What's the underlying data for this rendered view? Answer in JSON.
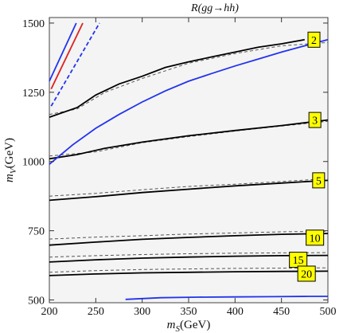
{
  "chart_data": {
    "type": "line",
    "title": "R(gg→hh)",
    "xlabel": "m_S(GeV)",
    "ylabel": "m_V(GeV)",
    "xlabel_parts": {
      "main": "m",
      "sub": "S",
      "unit": "(GeV)"
    },
    "ylabel_parts": {
      "main": "m",
      "sub": "V",
      "unit": "(GeV)"
    },
    "xlim": [
      200,
      500
    ],
    "ylim": [
      490,
      1520
    ],
    "xticks": [
      200,
      250,
      300,
      350,
      400,
      450,
      500
    ],
    "yticks": [
      500,
      750,
      1000,
      1250,
      1500
    ],
    "grid": false,
    "contours": [
      {
        "label": "2",
        "solid": [
          [
            200,
            1160
          ],
          [
            230,
            1195
          ],
          [
            250,
            1240
          ],
          [
            275,
            1280
          ],
          [
            300,
            1308
          ],
          [
            325,
            1340
          ],
          [
            350,
            1360
          ],
          [
            375,
            1378
          ],
          [
            400,
            1395
          ],
          [
            425,
            1413
          ],
          [
            450,
            1425
          ],
          [
            475,
            1440
          ]
        ],
        "dashed": [
          [
            200,
            1170
          ],
          [
            230,
            1190
          ],
          [
            260,
            1250
          ],
          [
            300,
            1300
          ],
          [
            350,
            1355
          ],
          [
            400,
            1390
          ],
          [
            450,
            1418
          ],
          [
            500,
            1430
          ]
        ],
        "tag_at": [
          485,
          1440
        ]
      },
      {
        "label": "3",
        "solid": [
          [
            200,
            1010
          ],
          [
            230,
            1025
          ],
          [
            260,
            1048
          ],
          [
            300,
            1070
          ],
          [
            350,
            1093
          ],
          [
            400,
            1112
          ],
          [
            450,
            1130
          ],
          [
            500,
            1150
          ]
        ],
        "dashed": [
          [
            200,
            1020
          ],
          [
            250,
            1035
          ],
          [
            300,
            1068
          ],
          [
            350,
            1090
          ],
          [
            400,
            1110
          ],
          [
            450,
            1128
          ],
          [
            500,
            1145
          ]
        ],
        "tag_at": [
          486,
          1150
        ]
      },
      {
        "label": "5",
        "solid": [
          [
            200,
            860
          ],
          [
            250,
            873
          ],
          [
            300,
            888
          ],
          [
            350,
            900
          ],
          [
            400,
            912
          ],
          [
            450,
            922
          ],
          [
            500,
            932
          ]
        ],
        "dashed": [
          [
            200,
            875
          ],
          [
            250,
            885
          ],
          [
            300,
            898
          ],
          [
            350,
            910
          ],
          [
            400,
            918
          ],
          [
            450,
            928
          ],
          [
            500,
            938
          ]
        ],
        "tag_at": [
          490,
          932
        ]
      },
      {
        "label": "10",
        "solid": [
          [
            200,
            698
          ],
          [
            250,
            709
          ],
          [
            300,
            719
          ],
          [
            350,
            726
          ],
          [
            400,
            732
          ],
          [
            450,
            737
          ],
          [
            500,
            740
          ]
        ],
        "dashed": [
          [
            200,
            720
          ],
          [
            250,
            727
          ],
          [
            300,
            732
          ],
          [
            350,
            738
          ],
          [
            400,
            742
          ],
          [
            450,
            746
          ],
          [
            500,
            748
          ]
        ],
        "tag_at": [
          486,
          725
        ]
      },
      {
        "label": "15",
        "solid": [
          [
            200,
            637
          ],
          [
            250,
            645
          ],
          [
            300,
            651
          ],
          [
            350,
            655
          ],
          [
            400,
            658
          ],
          [
            450,
            660
          ],
          [
            500,
            661
          ]
        ],
        "dashed": [
          [
            200,
            655
          ],
          [
            250,
            660
          ],
          [
            300,
            664
          ],
          [
            350,
            667
          ],
          [
            400,
            669
          ],
          [
            450,
            670
          ],
          [
            500,
            671
          ]
        ],
        "tag_at": [
          468,
          645
        ]
      },
      {
        "label": "20",
        "solid": [
          [
            200,
            588
          ],
          [
            250,
            594
          ],
          [
            300,
            598
          ],
          [
            350,
            600
          ],
          [
            400,
            602
          ],
          [
            450,
            603
          ],
          [
            500,
            604
          ]
        ],
        "dashed": [
          [
            200,
            600
          ],
          [
            250,
            606
          ],
          [
            300,
            610
          ],
          [
            350,
            612
          ],
          [
            400,
            614
          ],
          [
            450,
            615
          ],
          [
            500,
            616
          ]
        ],
        "tag_at": [
          477,
          595
        ]
      }
    ],
    "boundaries": [
      {
        "color": "#2233ee",
        "style": "solid",
        "points": [
          [
            200,
            990
          ],
          [
            225,
            1060
          ],
          [
            250,
            1120
          ],
          [
            275,
            1170
          ],
          [
            300,
            1215
          ],
          [
            325,
            1255
          ],
          [
            350,
            1290
          ],
          [
            375,
            1318
          ],
          [
            400,
            1345
          ],
          [
            425,
            1370
          ],
          [
            450,
            1395
          ],
          [
            475,
            1418
          ],
          [
            500,
            1440
          ]
        ]
      },
      {
        "color": "#2233ee",
        "style": "solid",
        "points": [
          [
            282,
            502
          ],
          [
            320,
            508
          ],
          [
            360,
            510
          ],
          [
            400,
            511
          ],
          [
            440,
            512
          ],
          [
            480,
            513
          ],
          [
            500,
            513
          ]
        ]
      },
      {
        "color": "#2233ee",
        "style": "solid",
        "points": [
          [
            200,
            1290
          ],
          [
            229,
            1500
          ]
        ]
      },
      {
        "color": "#dd2222",
        "style": "solid",
        "points": [
          [
            202,
            1262
          ],
          [
            236,
            1500
          ]
        ]
      },
      {
        "color": "#2233ee",
        "style": "dashed",
        "points": [
          [
            202,
            1200
          ],
          [
            254,
            1500
          ]
        ]
      }
    ],
    "colors": {
      "tag_fill": "#ffff00",
      "contour": "#000000",
      "dashed": "#555555",
      "plot_bg": "#f4f4f4",
      "blue": "#2233ee",
      "red": "#dd2222"
    }
  }
}
